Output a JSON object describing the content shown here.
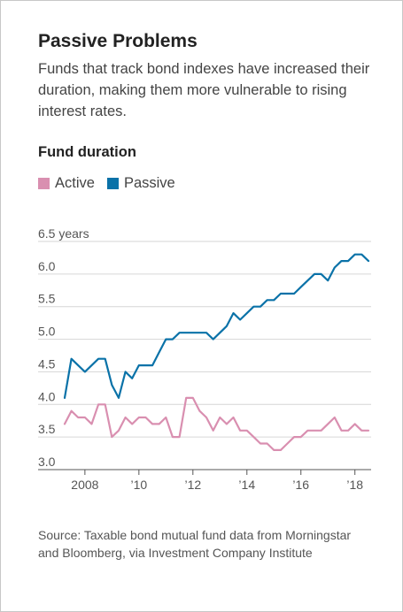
{
  "header": {
    "title": "Passive Problems",
    "subtitle": "Funds that track bond indexes have increased their duration, making them more vulnerable to rising interest rates."
  },
  "chart_title": "Fund duration",
  "legend": [
    {
      "label": "Active",
      "color": "#d98fb0"
    },
    {
      "label": "Passive",
      "color": "#0a72a8"
    }
  ],
  "source": "Source: Taxable bond mutual fund data from Morningstar and Bloomberg, via Investment Company Institute",
  "chart_data": {
    "type": "line",
    "ylim": [
      3.0,
      6.5
    ],
    "xlim": [
      2007.25,
      2018.6
    ],
    "y_ticks": [
      {
        "value": 6.5,
        "label": "6.5 years"
      },
      {
        "value": 6.0,
        "label": "6.0"
      },
      {
        "value": 5.5,
        "label": "5.5"
      },
      {
        "value": 5.0,
        "label": "5.0"
      },
      {
        "value": 4.5,
        "label": "4.5"
      },
      {
        "value": 4.0,
        "label": "4.0"
      },
      {
        "value": 3.5,
        "label": "3.5"
      },
      {
        "value": 3.0,
        "label": "3.0"
      }
    ],
    "x_ticks": [
      {
        "value": 2008,
        "label": "2008"
      },
      {
        "value": 2010,
        "label": "’10"
      },
      {
        "value": 2012,
        "label": "’12"
      },
      {
        "value": 2014,
        "label": "’14"
      },
      {
        "value": 2016,
        "label": "’16"
      },
      {
        "value": 2018,
        "label": "’18"
      }
    ],
    "series": [
      {
        "name": "Active",
        "color": "#d98fb0",
        "x": [
          2007.25,
          2007.5,
          2007.75,
          2008.0,
          2008.25,
          2008.5,
          2008.75,
          2009.0,
          2009.25,
          2009.5,
          2009.75,
          2010.0,
          2010.25,
          2010.5,
          2010.75,
          2011.0,
          2011.25,
          2011.5,
          2011.75,
          2012.0,
          2012.25,
          2012.5,
          2012.75,
          2013.0,
          2013.25,
          2013.5,
          2013.75,
          2014.0,
          2014.25,
          2014.5,
          2014.75,
          2015.0,
          2015.25,
          2015.5,
          2015.75,
          2016.0,
          2016.25,
          2016.5,
          2016.75,
          2017.0,
          2017.25,
          2017.5,
          2017.75,
          2018.0,
          2018.25,
          2018.5
        ],
        "values": [
          3.7,
          3.9,
          3.8,
          3.8,
          3.7,
          4.0,
          4.0,
          3.5,
          3.6,
          3.8,
          3.7,
          3.8,
          3.8,
          3.7,
          3.7,
          3.8,
          3.5,
          3.5,
          4.1,
          4.1,
          3.9,
          3.8,
          3.6,
          3.8,
          3.7,
          3.8,
          3.6,
          3.6,
          3.5,
          3.4,
          3.4,
          3.3,
          3.3,
          3.4,
          3.5,
          3.5,
          3.6,
          3.6,
          3.6,
          3.7,
          3.8,
          3.6,
          3.6,
          3.7,
          3.6,
          3.6
        ]
      },
      {
        "name": "Passive",
        "color": "#0a72a8",
        "x": [
          2007.25,
          2007.5,
          2007.75,
          2008.0,
          2008.25,
          2008.5,
          2008.75,
          2009.0,
          2009.25,
          2009.5,
          2009.75,
          2010.0,
          2010.25,
          2010.5,
          2010.75,
          2011.0,
          2011.25,
          2011.5,
          2011.75,
          2012.0,
          2012.25,
          2012.5,
          2012.75,
          2013.0,
          2013.25,
          2013.5,
          2013.75,
          2014.0,
          2014.25,
          2014.5,
          2014.75,
          2015.0,
          2015.25,
          2015.5,
          2015.75,
          2016.0,
          2016.25,
          2016.5,
          2016.75,
          2017.0,
          2017.25,
          2017.5,
          2017.75,
          2018.0,
          2018.25,
          2018.5
        ],
        "values": [
          4.1,
          4.7,
          4.6,
          4.5,
          4.6,
          4.7,
          4.7,
          4.3,
          4.1,
          4.5,
          4.4,
          4.6,
          4.6,
          4.6,
          4.8,
          5.0,
          5.0,
          5.1,
          5.1,
          5.1,
          5.1,
          5.1,
          5.0,
          5.1,
          5.2,
          5.4,
          5.3,
          5.4,
          5.5,
          5.5,
          5.6,
          5.6,
          5.7,
          5.7,
          5.7,
          5.8,
          5.9,
          6.0,
          6.0,
          5.9,
          6.1,
          6.2,
          6.2,
          6.3,
          6.3,
          6.2
        ]
      }
    ],
    "grid": true,
    "legend_position": "top-left"
  }
}
